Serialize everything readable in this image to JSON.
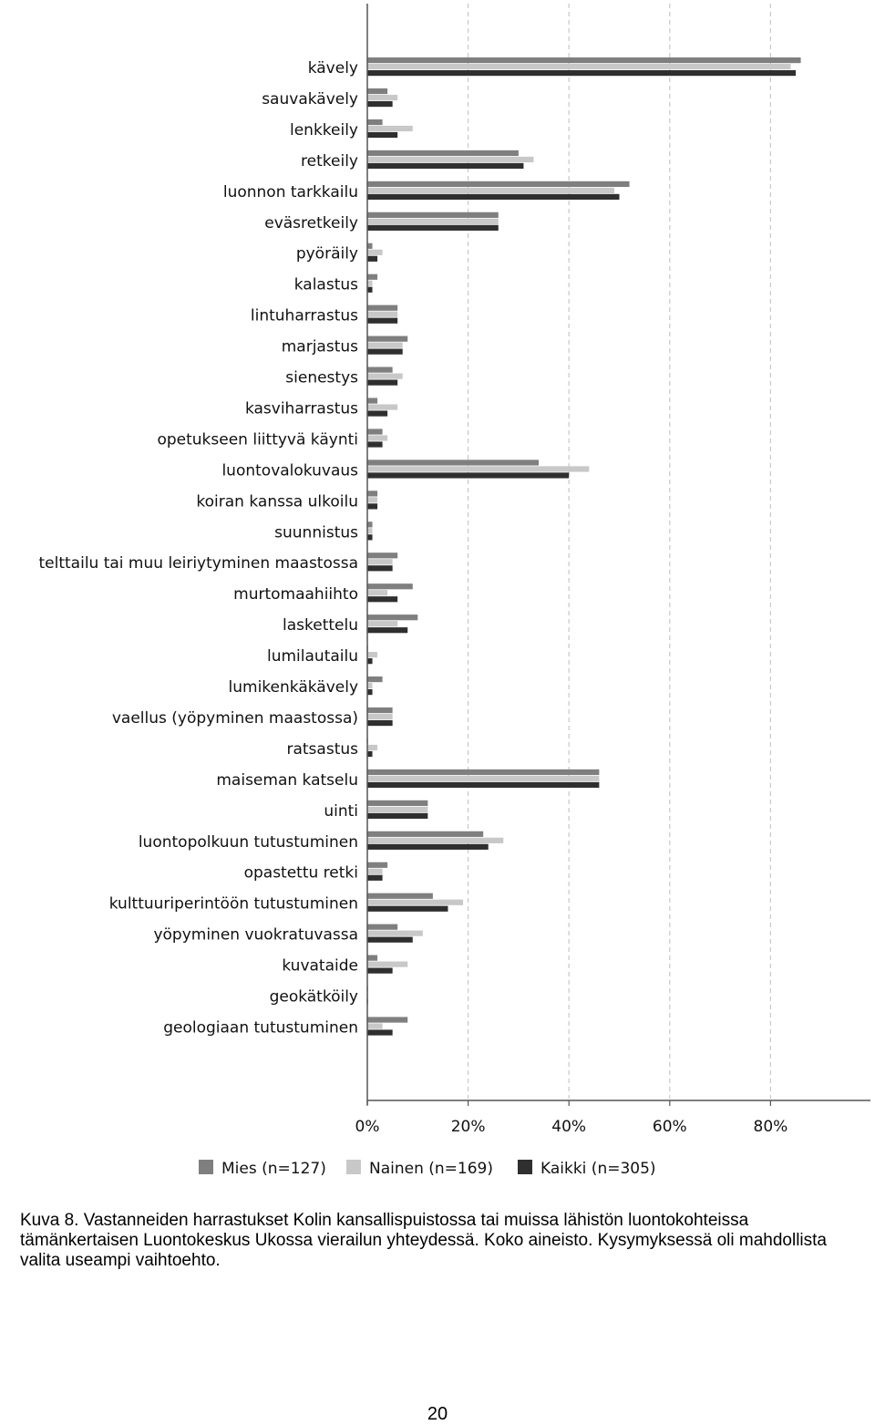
{
  "chart_data": {
    "type": "bar",
    "orientation": "horizontal",
    "categories": [
      "kävely",
      "sauvakävely",
      "lenkkeily",
      "retkeily",
      "luonnon tarkkailu",
      "eväsretkeily",
      "pyöräily",
      "kalastus",
      "lintuharrastus",
      "marjastus",
      "sienestys",
      "kasviharrastus",
      "opetukseen liittyvä käynti",
      "luontovalokuvaus",
      "koiran kanssa ulkoilu",
      "suunnistus",
      "telttailu tai muu leiriytyminen maastossa",
      "murtomaahiihto",
      "laskettelu",
      "lumilautailu",
      "lumikenkäkävely",
      "vaellus (yöpyminen maastossa)",
      "ratsastus",
      "maiseman katselu",
      "uinti",
      "luontopolkuun tutustuminen",
      "opastettu retki",
      "kulttuuriperintöön tutustuminen",
      "yöpyminen vuokratuvassa",
      "kuvataide",
      "geokätköily",
      "geologiaan tutustuminen"
    ],
    "series": [
      {
        "name": "Mies (n=127)",
        "color": "#7f7f7f",
        "values": [
          86,
          4,
          3,
          30,
          52,
          26,
          1,
          2,
          6,
          8,
          5,
          2,
          3,
          34,
          2,
          1,
          6,
          9,
          10,
          0,
          3,
          5,
          0,
          46,
          12,
          23,
          4,
          13,
          6,
          2,
          0,
          8
        ]
      },
      {
        "name": "Nainen (n=169)",
        "color": "#c8c8c8",
        "values": [
          84,
          6,
          9,
          33,
          49,
          26,
          3,
          1,
          6,
          7,
          7,
          6,
          4,
          44,
          2,
          1,
          5,
          4,
          6,
          2,
          1,
          5,
          2,
          46,
          12,
          27,
          3,
          19,
          11,
          8,
          0,
          3
        ]
      },
      {
        "name": "Kaikki (n=305)",
        "color": "#2f2f2f",
        "values": [
          85,
          5,
          6,
          31,
          50,
          26,
          2,
          1,
          6,
          7,
          6,
          4,
          3,
          40,
          2,
          1,
          5,
          6,
          8,
          1,
          1,
          5,
          1,
          46,
          12,
          24,
          3,
          16,
          9,
          5,
          0,
          5
        ]
      }
    ],
    "xlim": [
      0,
      100
    ],
    "xticks": [
      "0%",
      "20%",
      "40%",
      "60%",
      "80%"
    ],
    "xtick_values": [
      0,
      20,
      40,
      60,
      80
    ],
    "grid": "vertical dashed",
    "legend_position": "bottom"
  },
  "caption": {
    "label": "Kuva 8.",
    "text": "Vastanneiden harrastukset Kolin kansallispuistossa tai muissa lähistön luontokohteissa tämänkertaisen Luontokeskus Ukossa vierailun yhteydessä. Koko aineisto. Kysymyksessä oli mahdollista valita useampi vaihtoehto."
  },
  "page_number": "20"
}
